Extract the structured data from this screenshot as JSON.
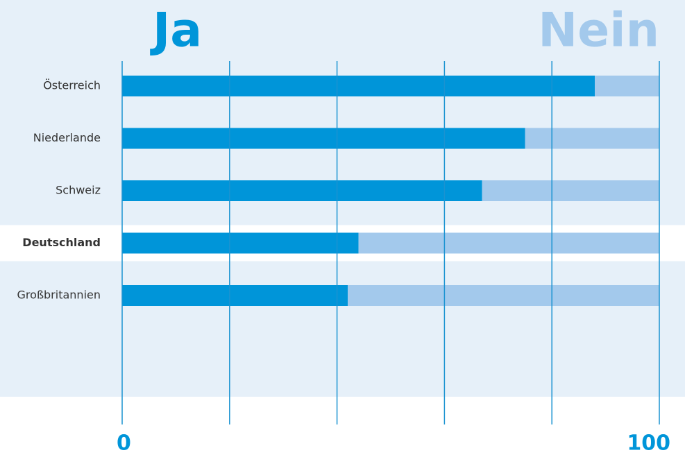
{
  "chart_data": {
    "type": "stacked_barh",
    "categories": [
      "Österreich",
      "Niederlande",
      "Schweiz",
      "Deutschland",
      "Großbritannien"
    ],
    "series": [
      {
        "name": "Ja",
        "color": "#0095d9",
        "values": [
          88,
          75,
          67,
          44,
          42
        ]
      },
      {
        "name": "Nein",
        "color": "#a3c9ec",
        "values": [
          12,
          25,
          33,
          56,
          58
        ]
      }
    ],
    "xlim": [
      0,
      100
    ],
    "xticks": [
      0,
      20,
      40,
      60,
      80,
      100
    ],
    "grid": true,
    "highlight": 3
  }
}
